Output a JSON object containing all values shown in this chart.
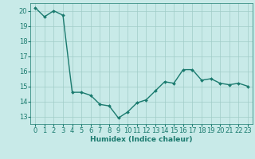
{
  "x": [
    0,
    1,
    2,
    3,
    4,
    5,
    6,
    7,
    8,
    9,
    10,
    11,
    12,
    13,
    14,
    15,
    16,
    17,
    18,
    19,
    20,
    21,
    22,
    23
  ],
  "y": [
    20.2,
    19.6,
    20.0,
    19.7,
    14.6,
    14.6,
    14.4,
    13.8,
    13.7,
    12.9,
    13.3,
    13.9,
    14.1,
    14.7,
    15.3,
    15.2,
    16.1,
    16.1,
    15.4,
    15.5,
    15.2,
    15.1,
    15.2,
    15.0
  ],
  "line_color": "#1a7a6e",
  "marker": "D",
  "marker_size": 2.0,
  "bg_color": "#c8eae8",
  "grid_color": "#a0ccc8",
  "xlabel": "Humidex (Indice chaleur)",
  "ylim": [
    12.5,
    20.5
  ],
  "xlim": [
    -0.5,
    23.5
  ],
  "yticks": [
    13,
    14,
    15,
    16,
    17,
    18,
    19,
    20
  ],
  "xticks": [
    0,
    1,
    2,
    3,
    4,
    5,
    6,
    7,
    8,
    9,
    10,
    11,
    12,
    13,
    14,
    15,
    16,
    17,
    18,
    19,
    20,
    21,
    22,
    23
  ],
  "xlabel_fontsize": 6.5,
  "tick_fontsize": 6.0,
  "linewidth": 1.0
}
